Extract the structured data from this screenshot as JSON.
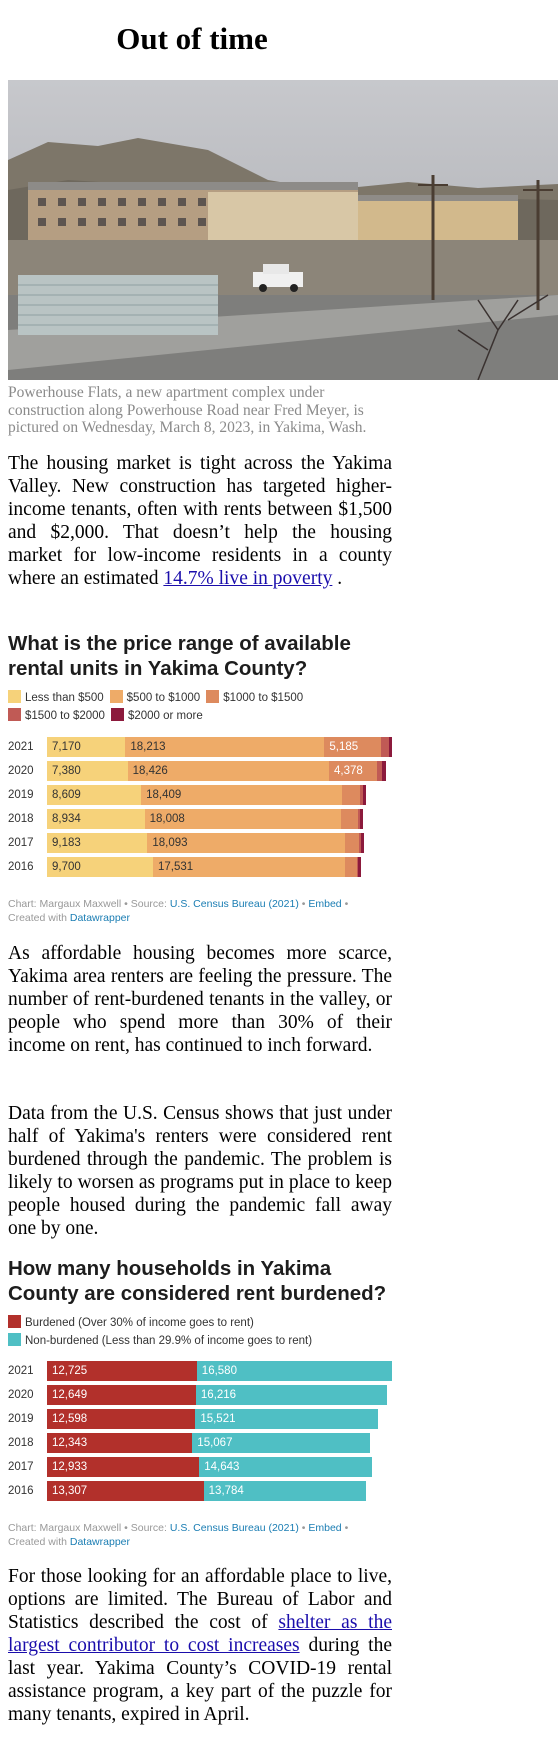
{
  "article": {
    "title": "Out of time",
    "photo_caption": "Powerhouse Flats, a new apartment complex under construction along Powerhouse Road near Fred Meyer, is pictured on Wednesday, March 8, 2023, in Yakima, Wash.",
    "p1_text": "The housing market is tight across the Yakima Valley. New construction has targeted higher-income tenants, often with rents between $1,500 and $2,000. That doesn’t help the housing market for low-income residents in a county where an estimated ",
    "p1_link": "14.7% live in poverty",
    "p1_end": " .",
    "p2": "As affordable housing becomes more scarce, Yakima area renters are feeling the pressure. The number of rent-burdened tenants in the valley, or people who spend more than 30% of their income on rent, has continued to inch forward.",
    "p3": "Data from the U.S. Census shows that just under half of Yakima's renters were considered rent burdened through the pandemic. The problem is likely to worsen as programs put in place to keep people housed during the pandemic fall away one by one.",
    "p4_start": "For those looking for an affordable place to live, options are limited. The Bureau of Labor and Statistics described the cost of ",
    "p4_link": "shelter as the largest contributor to cost increases",
    "p4_end": " during the last year. Yakima County’s COVID-19 rental assistance program, a key part of the puzzle for many tenants, expired in April."
  },
  "credits": {
    "chart_by": "Chart: Margaux Maxwell",
    "source_prefix": "Source:",
    "source": "U.S. Census Bureau (2021)",
    "embed": "Embed",
    "created_prefix": "Created with",
    "tool": "Datawrapper",
    "sep": "•"
  },
  "chart_data": [
    {
      "type": "bar",
      "stacked": true,
      "orientation": "horizontal",
      "title": "What is the price range of available rental units in Yakima County?",
      "categories": [
        "2021",
        "2020",
        "2019",
        "2018",
        "2017",
        "2016"
      ],
      "series": [
        {
          "name": "Less than $500",
          "color": "#f6d27a",
          "values": [
            7170,
            7380,
            8609,
            8934,
            9183,
            9700
          ]
        },
        {
          "name": "$500 to $1000",
          "color": "#eeab68",
          "values": [
            18213,
            18426,
            18409,
            18008,
            18093,
            17531
          ]
        },
        {
          "name": "$1000 to $1500",
          "color": "#dd8a5e",
          "values": [
            5185,
            4378,
            1600,
            1500,
            1300,
            1100
          ]
        },
        {
          "name": "$1500 to $2000",
          "color": "#c05a55",
          "values": [
            700,
            500,
            300,
            200,
            200,
            150
          ]
        },
        {
          "name": "$2000 or more",
          "color": "#8c1a3c",
          "values": [
            300,
            300,
            250,
            250,
            250,
            250
          ]
        }
      ],
      "labels": [
        [
          "7,170",
          "18,213",
          "5,185"
        ],
        [
          "7,380",
          "18,426",
          "4,378"
        ],
        [
          "8,609",
          "18,409"
        ],
        [
          "8,934",
          "18,008"
        ],
        [
          "9,183",
          "18,093"
        ],
        [
          "9,700",
          "17,531"
        ]
      ],
      "xlim": [
        0,
        31568
      ],
      "legend": "top"
    },
    {
      "type": "bar",
      "stacked": true,
      "orientation": "horizontal",
      "title": "How many households in Yakima County are considered rent burdened?",
      "categories": [
        "2021",
        "2020",
        "2019",
        "2018",
        "2017",
        "2016"
      ],
      "series": [
        {
          "name": "Burdened (Over 30% of income goes to rent)",
          "color": "#b2302b",
          "values": [
            12725,
            12649,
            12598,
            12343,
            12933,
            13307
          ]
        },
        {
          "name": "Non-burdened (Less than 29.9% of income goes to rent)",
          "color": "#4fbfc4",
          "values": [
            16580,
            16216,
            15521,
            15067,
            14643,
            13784
          ]
        }
      ],
      "labels": [
        [
          "12,725",
          "16,580"
        ],
        [
          "12,649",
          "16,216"
        ],
        [
          "12,598",
          "15,521"
        ],
        [
          "12,343",
          "15,067"
        ],
        [
          "12,933",
          "14,643"
        ],
        [
          "13,307",
          "13,784"
        ]
      ],
      "xlim": [
        0,
        29305
      ],
      "legend": "top"
    }
  ]
}
